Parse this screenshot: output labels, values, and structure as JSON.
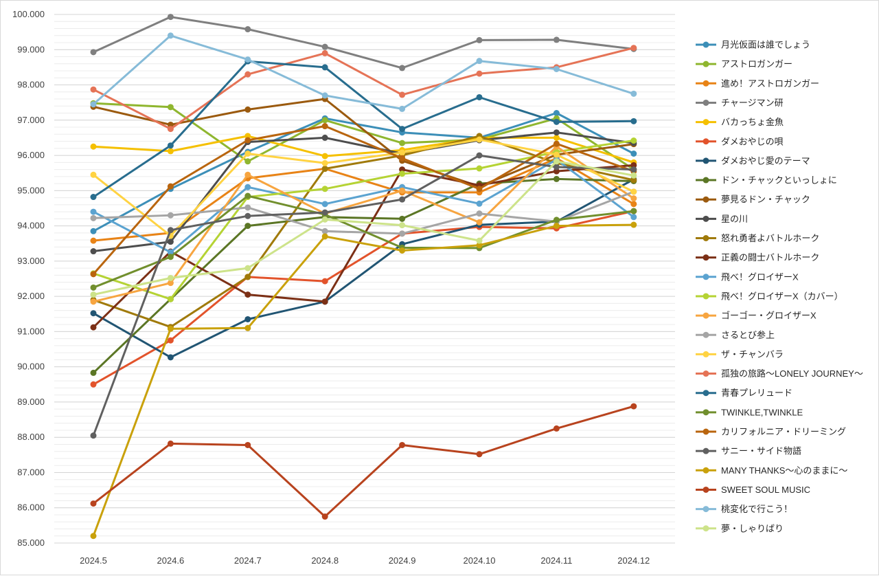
{
  "chart_data": {
    "type": "line",
    "title": "",
    "xlabel": "",
    "ylabel": "",
    "ylim": [
      85.0,
      100.0
    ],
    "major_step": 1.0,
    "minor_step": 0.2,
    "y_tick_decimals": 3,
    "grid": true,
    "legend_position": "right",
    "categories": [
      "2024.5",
      "2024.6",
      "2024.7",
      "2024.8",
      "2024.9",
      "2024.10",
      "2024.11",
      "2024.12"
    ],
    "series": [
      {
        "name": "月光仮面は誰でしょう",
        "color": "#3c8fb8",
        "values": [
          93.85,
          95.05,
          96.1,
          97.05,
          96.65,
          96.5,
          97.2,
          96.05
        ]
      },
      {
        "name": "アストロガンガー",
        "color": "#8fb62f",
        "values": [
          97.48,
          97.37,
          95.83,
          97.0,
          96.35,
          96.45,
          97.05,
          95.6
        ]
      },
      {
        "name": "進め！アストロガンガー",
        "color": "#e88316",
        "values": [
          93.58,
          93.8,
          95.35,
          95.62,
          94.95,
          94.95,
          95.92,
          94.62
        ]
      },
      {
        "name": "チャージマン研",
        "color": "#7f7f7f",
        "values": [
          98.93,
          99.93,
          99.58,
          99.08,
          98.48,
          99.27,
          99.28,
          99.02
        ]
      },
      {
        "name": "バカっちょ金魚",
        "color": "#f5c000",
        "values": [
          96.25,
          96.12,
          96.55,
          95.98,
          96.15,
          96.5,
          96.5,
          95.8
        ]
      },
      {
        "name": "ダメおやじの唄",
        "color": "#e2532b",
        "values": [
          89.5,
          90.75,
          92.55,
          92.43,
          93.78,
          93.97,
          93.93,
          94.42
        ]
      },
      {
        "name": "ダメおやじ愛のテーマ",
        "color": "#215573",
        "values": [
          91.52,
          90.27,
          91.35,
          91.85,
          93.48,
          94.03,
          94.12,
          95.32
        ]
      },
      {
        "name": "ドン・チャックといっしょに",
        "color": "#5b7625",
        "values": [
          89.83,
          91.92,
          94.0,
          94.25,
          94.2,
          95.2,
          95.33,
          95.27
        ]
      },
      {
        "name": "夢見るドン・チャック",
        "color": "#9b5a0e",
        "values": [
          97.38,
          96.87,
          97.3,
          97.6,
          95.85,
          95.12,
          96.02,
          96.32
        ]
      },
      {
        "name": "星の川",
        "color": "#4d4d4d",
        "values": [
          93.28,
          93.55,
          96.38,
          96.5,
          96.05,
          96.43,
          96.65,
          96.35
        ]
      },
      {
        "name": "怒れ勇者よバトルホーク",
        "color": "#a07a0a",
        "values": [
          91.9,
          91.13,
          92.55,
          95.62,
          96.0,
          96.55,
          95.78,
          95.3
        ]
      },
      {
        "name": "正義の闘士バトルホーク",
        "color": "#7c3016",
        "values": [
          91.12,
          93.27,
          92.05,
          91.85,
          95.6,
          95.15,
          95.55,
          95.72
        ]
      },
      {
        "name": "飛べ！グロイザーX",
        "color": "#5ba3d0",
        "values": [
          94.4,
          93.25,
          95.1,
          94.62,
          95.1,
          94.63,
          95.88,
          94.25
        ]
      },
      {
        "name": "飛べ！グロイザーX（カバー）",
        "color": "#b5d334",
        "values": [
          92.65,
          91.92,
          94.82,
          95.05,
          95.48,
          95.63,
          96.1,
          96.42
        ]
      },
      {
        "name": "ゴーゴー・グロイザーX",
        "color": "#f7a540",
        "values": [
          91.85,
          92.38,
          95.45,
          94.35,
          95.0,
          94.1,
          96.25,
          94.78
        ]
      },
      {
        "name": "さるとび参上",
        "color": "#a5a5a5",
        "values": [
          94.22,
          94.3,
          94.52,
          93.85,
          93.78,
          94.35,
          94.12,
          94.97
        ]
      },
      {
        "name": "ザ・チャンバラ",
        "color": "#ffd343",
        "values": [
          95.45,
          93.72,
          96.05,
          95.78,
          96.08,
          96.45,
          96.02,
          94.97
        ]
      },
      {
        "name": "孤独の旅路〜LONELY JOURNEY〜",
        "color": "#e57356",
        "values": [
          97.87,
          96.75,
          98.3,
          98.9,
          97.72,
          98.32,
          98.5,
          99.05
        ]
      },
      {
        "name": "青春プレリュード",
        "color": "#286d8e",
        "values": [
          94.82,
          96.28,
          98.67,
          98.5,
          96.75,
          97.65,
          96.95,
          96.97
        ]
      },
      {
        "name": "TWINKLE,TWINKLE",
        "color": "#718f2d",
        "values": [
          92.25,
          93.12,
          94.85,
          94.32,
          93.38,
          93.37,
          94.17,
          94.42
        ]
      },
      {
        "name": "カリフォルニア・ドリーミング",
        "color": "#b9650e",
        "values": [
          92.63,
          95.12,
          96.43,
          96.83,
          95.92,
          95.05,
          96.33,
          95.55
        ]
      },
      {
        "name": "サニー・サイド物語",
        "color": "#606060",
        "values": [
          88.05,
          93.88,
          94.28,
          94.38,
          94.75,
          96.0,
          95.67,
          95.6
        ]
      },
      {
        "name": "MANY THANKS〜心のままに〜",
        "color": "#c9a10b",
        "values": [
          85.2,
          91.08,
          91.1,
          93.7,
          93.3,
          93.45,
          94.0,
          94.03
        ]
      },
      {
        "name": "SWEET SOUL MUSIC",
        "color": "#b8431e",
        "values": [
          86.12,
          87.82,
          87.78,
          85.75,
          87.78,
          87.52,
          88.25,
          88.88
        ]
      },
      {
        "name": "桃変化で行こう！",
        "color": "#86bbd8",
        "values": [
          97.45,
          99.4,
          98.72,
          97.7,
          97.32,
          98.68,
          98.45,
          97.75
        ]
      },
      {
        "name": "夢・しゃりばり",
        "color": "#cde38a",
        "values": [
          92.05,
          92.52,
          92.8,
          94.18,
          94.02,
          93.58,
          95.83,
          95.43
        ]
      }
    ]
  }
}
